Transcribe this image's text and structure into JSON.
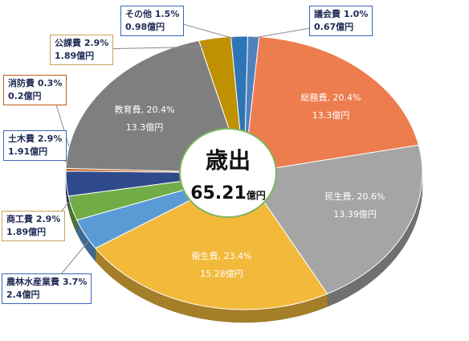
{
  "chart_data": {
    "type": "pie",
    "center_title": "歳出",
    "center_value": "65.21",
    "center_unit": "億円",
    "slices": [
      {
        "name": "議会費",
        "percent_label": "1.0%",
        "amount_label": "0.67億円",
        "value": 0.67,
        "color": "#4f81bd",
        "label_mode": "callout",
        "callout_border": "#3a66b8"
      },
      {
        "name": "総務費",
        "percent_label": "20.4%",
        "amount_label": "13.3億円",
        "value": 13.3,
        "color": "#ed7d4f",
        "label_mode": "inside",
        "label_color": "#ffffff"
      },
      {
        "name": "民生費",
        "percent_label": "20.6%",
        "amount_label": "13.39億円",
        "value": 13.39,
        "color": "#a5a5a5",
        "label_mode": "inside",
        "label_color": "#ffffff"
      },
      {
        "name": "衛生費",
        "percent_label": "23.4%",
        "amount_label": "15.28億円",
        "value": 15.28,
        "color": "#f2b93b",
        "label_mode": "inside",
        "label_color": "#ffffff"
      },
      {
        "name": "農林水産業費",
        "percent_label": "3.7%",
        "amount_label": "2.4億円",
        "value": 2.4,
        "color": "#5b9bd5",
        "label_mode": "callout",
        "callout_border": "#3a66b8"
      },
      {
        "name": "商工費",
        "percent_label": "2.9%",
        "amount_label": "1.89億円",
        "value": 1.89,
        "color": "#70ad47",
        "label_mode": "callout",
        "callout_border": "#c9a25a"
      },
      {
        "name": "土木費",
        "percent_label": "2.9%",
        "amount_label": "1.91億円",
        "value": 1.91,
        "color": "#2f4a8a",
        "label_mode": "callout",
        "callout_border": "#3a66b8"
      },
      {
        "name": "消防費",
        "percent_label": "0.3%",
        "amount_label": "0.2億円",
        "value": 0.2,
        "color": "#c55a11",
        "label_mode": "callout",
        "callout_border": "#c55a11"
      },
      {
        "name": "教育費",
        "percent_label": "20.4%",
        "amount_label": "13.3億円",
        "value": 13.3,
        "color": "#7f7f7f",
        "label_mode": "inside",
        "label_color": "#ffffff"
      },
      {
        "name": "公課費",
        "percent_label": "2.9%",
        "amount_label": "1.89億円",
        "value": 1.89,
        "color": "#bf9000",
        "label_mode": "callout",
        "callout_border": "#c9a25a"
      },
      {
        "name": "その他",
        "percent_label": "1.5%",
        "amount_label": "0.98億円",
        "value": 0.98,
        "color": "#2e75b6",
        "label_mode": "callout",
        "callout_border": "#3a66b8"
      }
    ]
  }
}
